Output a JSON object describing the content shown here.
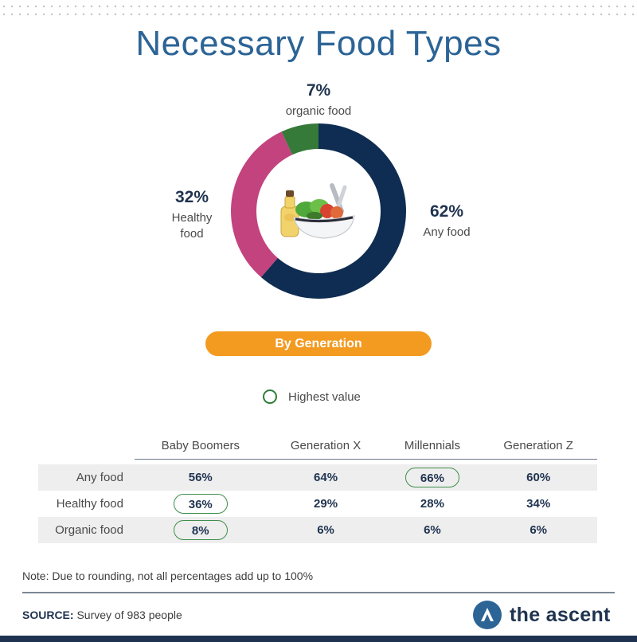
{
  "title": "Necessary Food Types",
  "colors": {
    "any": "#0f2d52",
    "healthy": "#c3437f",
    "organic": "#357a38",
    "accent": "#f39a21"
  },
  "chart_data": [
    {
      "type": "pie",
      "title": "Necessary Food Types",
      "categories": [
        "Any food",
        "Healthy food",
        "organic food"
      ],
      "values": [
        62,
        32,
        7
      ],
      "labels": [
        {
          "pct": "62%",
          "name": "Any food"
        },
        {
          "pct": "32%",
          "name": "Healthy\nfood"
        },
        {
          "pct": "7%",
          "name": "organic food"
        }
      ]
    },
    {
      "type": "table",
      "title": "By Generation",
      "columns": [
        "Baby Boomers",
        "Generation X",
        "Millennials",
        "Generation Z"
      ],
      "rows": [
        {
          "label": "Any food",
          "values": [
            "56%",
            "64%",
            "66%",
            "60%"
          ],
          "highest": [
            false,
            false,
            true,
            false
          ]
        },
        {
          "label": "Healthy food",
          "values": [
            "36%",
            "29%",
            "28%",
            "34%"
          ],
          "highest": [
            true,
            false,
            false,
            false
          ]
        },
        {
          "label": "Organic food",
          "values": [
            "8%",
            "6%",
            "6%",
            "6%"
          ],
          "highest": [
            true,
            false,
            false,
            false
          ]
        }
      ]
    }
  ],
  "callouts": {
    "organic": {
      "pct": "7%",
      "label": "organic food"
    },
    "healthy": {
      "pct": "32%",
      "label1": "Healthy",
      "label2": "food"
    },
    "any": {
      "pct": "62%",
      "label": "Any food"
    }
  },
  "section_pill": "By Generation",
  "legend": {
    "label": "Highest value"
  },
  "note": "Note: Due to rounding, not all percentages add up to 100%",
  "source": {
    "label": "SOURCE:",
    "text": " Survey of 983 people"
  },
  "brand": {
    "name": "the ascent"
  }
}
